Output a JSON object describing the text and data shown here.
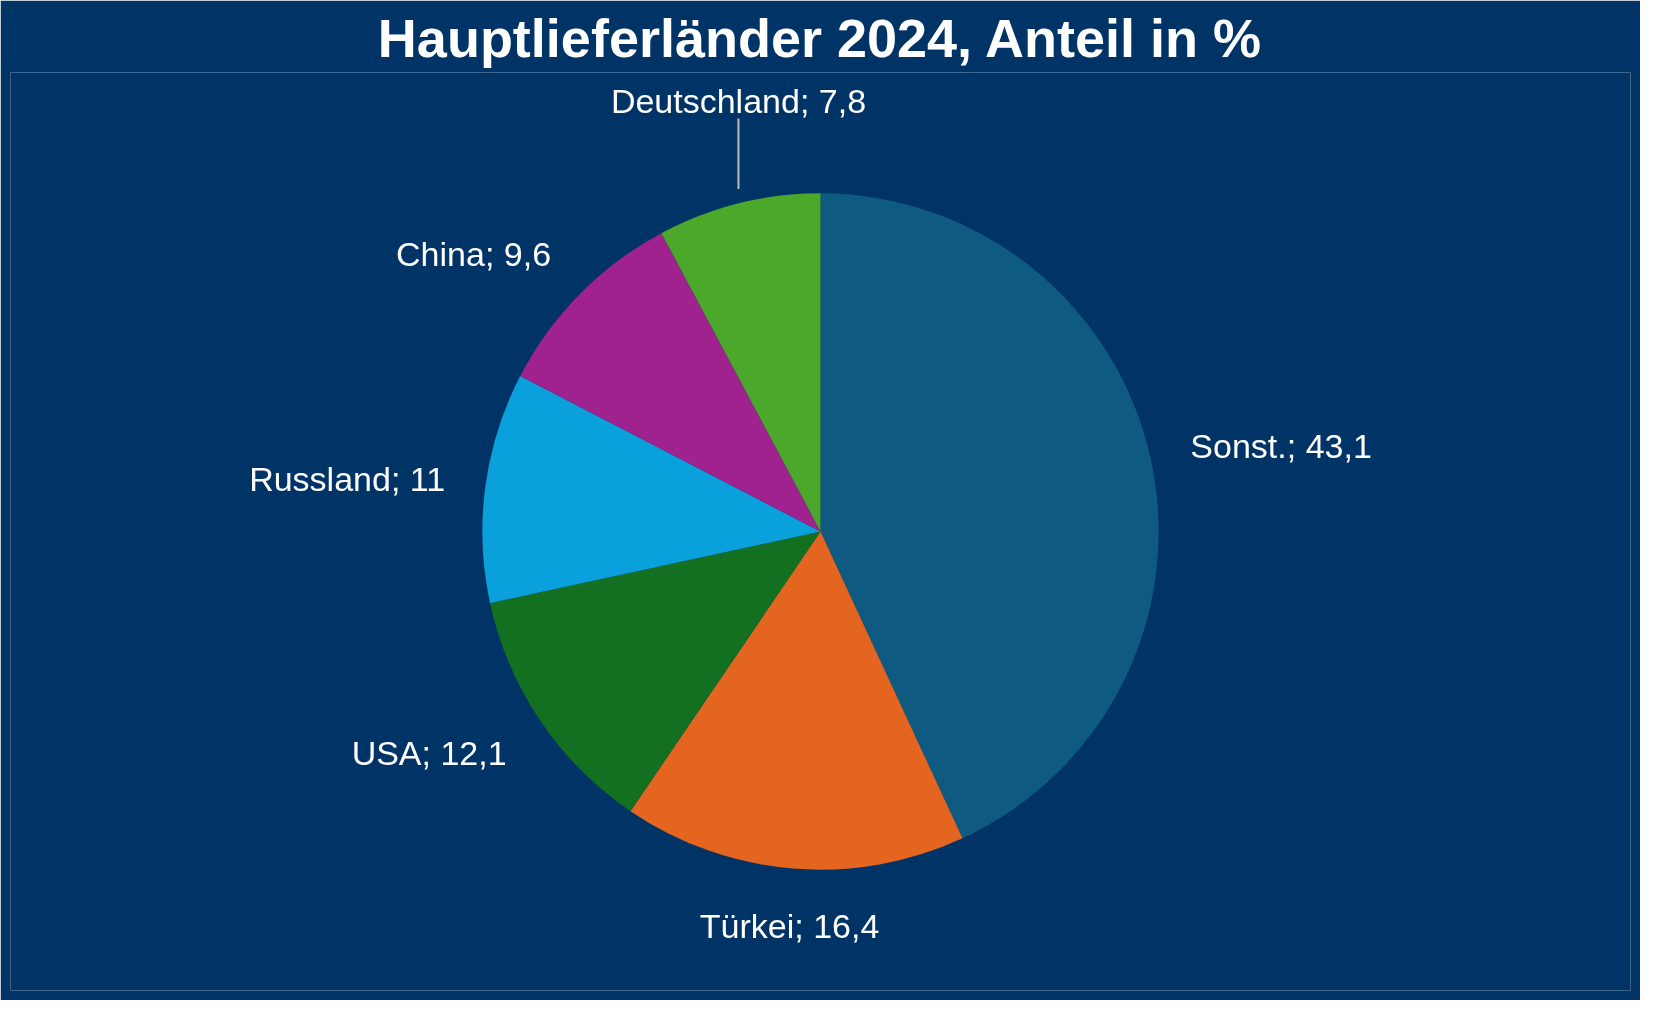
{
  "chart_data": {
    "type": "pie",
    "title": "Hauptlieferländer 2024, Anteil in %",
    "categories": [
      "Sonst.",
      "Türkei",
      "USA",
      "Russland",
      "China",
      "Deutschland"
    ],
    "values": [
      43.1,
      16.4,
      12.1,
      11,
      9.6,
      7.8
    ],
    "value_labels": [
      "43,1",
      "16,4",
      "12,1",
      "11",
      "9,6",
      "7,8"
    ],
    "colors": [
      "#0e5a80",
      "#e46520",
      "#137020",
      "#0aa0dc",
      "#a0228e",
      "#4ba82a"
    ]
  }
}
